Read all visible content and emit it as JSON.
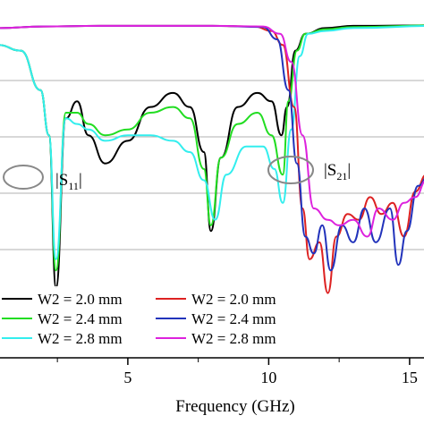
{
  "chart_data": {
    "type": "line",
    "xlabel": "Frequency (GHz)",
    "ylabel": "",
    "xlim": [
      0.4,
      16
    ],
    "ylim": [
      -50,
      2
    ],
    "grid": "horizontal",
    "xticks": [
      "5",
      "10",
      "15"
    ],
    "legend_position": "bottom-left",
    "annotations": [
      "|S11|",
      "|S21|"
    ],
    "series": [
      {
        "name": "W2 = 2.0 mm",
        "group": "S11",
        "color": "#000000",
        "points": [
          [
            0.4,
            -4
          ],
          [
            1.2,
            -5
          ],
          [
            1.9,
            -12
          ],
          [
            2.2,
            -20
          ],
          [
            2.45,
            -47
          ],
          [
            2.8,
            -17
          ],
          [
            3.2,
            -14
          ],
          [
            3.6,
            -20
          ],
          [
            4.2,
            -25
          ],
          [
            5.0,
            -21
          ],
          [
            5.8,
            -15
          ],
          [
            6.6,
            -12.5
          ],
          [
            7.2,
            -15
          ],
          [
            7.7,
            -23
          ],
          [
            7.95,
            -37
          ],
          [
            8.3,
            -24
          ],
          [
            8.9,
            -15
          ],
          [
            9.6,
            -12.5
          ],
          [
            10.1,
            -14
          ],
          [
            10.45,
            -20
          ],
          [
            10.65,
            -15
          ],
          [
            10.95,
            -5
          ],
          [
            11.3,
            -2
          ],
          [
            12,
            -1
          ],
          [
            13,
            -0.6
          ],
          [
            16,
            -0.5
          ]
        ]
      },
      {
        "name": "W2 = 2.4 mm",
        "group": "S11",
        "color": "#22dd22",
        "points": [
          [
            0.4,
            -4
          ],
          [
            1.2,
            -5
          ],
          [
            1.9,
            -12
          ],
          [
            2.2,
            -20
          ],
          [
            2.45,
            -44
          ],
          [
            2.8,
            -16
          ],
          [
            3.2,
            -16
          ],
          [
            3.6,
            -18
          ],
          [
            4.2,
            -20
          ],
          [
            5.0,
            -19
          ],
          [
            5.8,
            -16
          ],
          [
            6.6,
            -15
          ],
          [
            7.2,
            -17
          ],
          [
            7.7,
            -26
          ],
          [
            7.95,
            -36
          ],
          [
            8.3,
            -24
          ],
          [
            8.9,
            -18
          ],
          [
            9.6,
            -16
          ],
          [
            10.1,
            -20
          ],
          [
            10.5,
            -27
          ],
          [
            10.7,
            -14
          ],
          [
            11.0,
            -5
          ],
          [
            11.3,
            -2
          ],
          [
            12,
            -1.2
          ],
          [
            13,
            -0.8
          ],
          [
            16,
            -0.5
          ]
        ]
      },
      {
        "name": "W2 = 2.8 mm",
        "group": "S11",
        "color": "#33eeee",
        "points": [
          [
            0.4,
            -4
          ],
          [
            1.2,
            -5
          ],
          [
            1.9,
            -12
          ],
          [
            2.2,
            -20
          ],
          [
            2.45,
            -42
          ],
          [
            2.8,
            -17
          ],
          [
            3.2,
            -18
          ],
          [
            3.6,
            -19
          ],
          [
            4.2,
            -21
          ],
          [
            5.0,
            -20
          ],
          [
            5.8,
            -20
          ],
          [
            6.6,
            -21
          ],
          [
            7.2,
            -23
          ],
          [
            7.7,
            -28
          ],
          [
            8.1,
            -35
          ],
          [
            8.5,
            -27
          ],
          [
            9.2,
            -22
          ],
          [
            9.8,
            -22
          ],
          [
            10.2,
            -26
          ],
          [
            10.5,
            -32
          ],
          [
            10.8,
            -19
          ],
          [
            11.1,
            -6
          ],
          [
            11.4,
            -2
          ],
          [
            12,
            -1.5
          ],
          [
            13,
            -1
          ],
          [
            16,
            -0.6
          ]
        ]
      },
      {
        "name": "W2 = 2.0 mm",
        "group": "S21",
        "color": "#dd2222",
        "points": [
          [
            0.4,
            -1
          ],
          [
            2,
            -0.7
          ],
          [
            4,
            -0.6
          ],
          [
            6,
            -0.6
          ],
          [
            8,
            -0.6
          ],
          [
            9.5,
            -0.7
          ],
          [
            10.1,
            -1.5
          ],
          [
            10.5,
            -4
          ],
          [
            10.9,
            -15
          ],
          [
            11.2,
            -33
          ],
          [
            11.45,
            -42
          ],
          [
            11.8,
            -39
          ],
          [
            12.1,
            -48
          ],
          [
            12.4,
            -38
          ],
          [
            12.8,
            -34
          ],
          [
            13.2,
            -35
          ],
          [
            13.6,
            -31
          ],
          [
            14.0,
            -34
          ],
          [
            14.4,
            -32
          ],
          [
            14.8,
            -38
          ],
          [
            15.2,
            -30
          ],
          [
            15.6,
            -27
          ],
          [
            16,
            -26.5
          ]
        ]
      },
      {
        "name": "W2 = 2.4 mm",
        "group": "S21",
        "color": "#2233bb",
        "points": [
          [
            0.4,
            -1
          ],
          [
            2,
            -0.7
          ],
          [
            4,
            -0.6
          ],
          [
            6,
            -0.6
          ],
          [
            8,
            -0.6
          ],
          [
            9.8,
            -0.8
          ],
          [
            10.3,
            -3
          ],
          [
            10.7,
            -12
          ],
          [
            11.0,
            -25
          ],
          [
            11.3,
            -38
          ],
          [
            11.6,
            -41
          ],
          [
            11.9,
            -36
          ],
          [
            12.2,
            -44
          ],
          [
            12.6,
            -36
          ],
          [
            13.0,
            -39
          ],
          [
            13.4,
            -33
          ],
          [
            13.8,
            -39
          ],
          [
            14.3,
            -33
          ],
          [
            14.6,
            -43
          ],
          [
            14.9,
            -37
          ],
          [
            15.3,
            -29
          ],
          [
            15.7,
            -27
          ],
          [
            16,
            -26.5
          ]
        ]
      },
      {
        "name": "W2 = 2.8 mm",
        "group": "S21",
        "color": "#dd22dd",
        "points": [
          [
            0.4,
            -1
          ],
          [
            2,
            -0.7
          ],
          [
            4,
            -0.6
          ],
          [
            6,
            -0.6
          ],
          [
            8,
            -0.6
          ],
          [
            9.8,
            -0.7
          ],
          [
            10.4,
            -2
          ],
          [
            10.8,
            -7
          ],
          [
            11.2,
            -20
          ],
          [
            11.6,
            -33
          ],
          [
            12.1,
            -35
          ],
          [
            12.5,
            -36
          ],
          [
            13.0,
            -35
          ],
          [
            13.5,
            -38
          ],
          [
            13.9,
            -33
          ],
          [
            14.4,
            -35
          ],
          [
            14.8,
            -32
          ],
          [
            15.2,
            -31
          ],
          [
            15.6,
            -28
          ],
          [
            16,
            -27
          ]
        ]
      }
    ]
  },
  "legend": {
    "left": [
      {
        "label": "W2 = 2.0 mm",
        "color": "#000000"
      },
      {
        "label": "W2 = 2.4 mm",
        "color": "#22dd22"
      },
      {
        "label": "W2 = 2.8 mm",
        "color": "#33eeee"
      }
    ],
    "right": [
      {
        "label": "W2 = 2.0 mm",
        "color": "#dd2222"
      },
      {
        "label": "W2 = 2.4 mm",
        "color": "#2233bb"
      },
      {
        "label": "W2 = 2.8 mm",
        "color": "#dd22dd"
      }
    ]
  },
  "labels": {
    "s11_main": "|S",
    "s11_sub": "11",
    "s11_end": "|",
    "s21_main": "|S",
    "s21_sub": "21",
    "s21_end": "|"
  }
}
